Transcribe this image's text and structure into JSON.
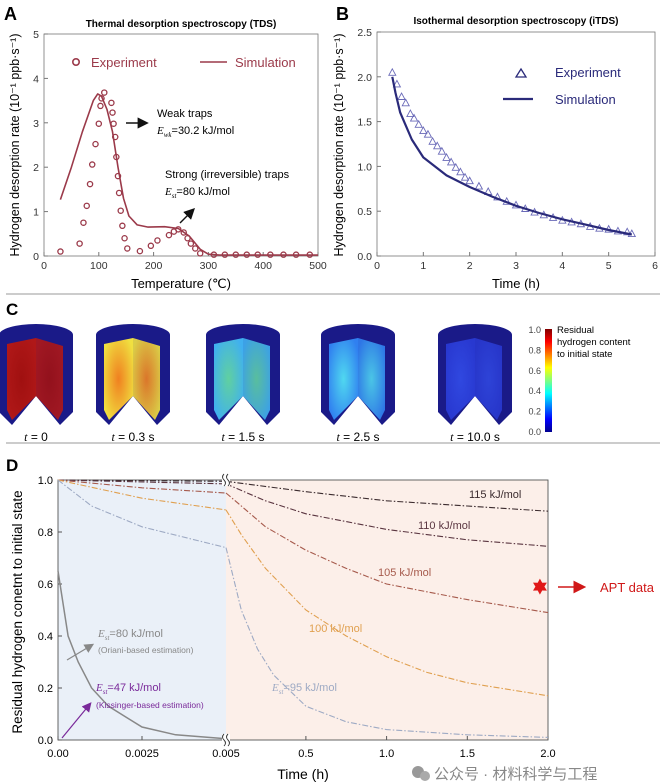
{
  "panels": {
    "a": "A",
    "b": "B",
    "c": "C",
    "d": "D"
  },
  "chart_data": [
    {
      "id": "A",
      "type": "scatter+line",
      "title": "Thermal desorption spectroscopy (TDS)",
      "xlabel": "Temperature (℃)",
      "ylabel": "Hydrogen desorption rate (10⁻¹ ppb·s⁻¹)",
      "xlim": [
        0,
        500
      ],
      "ylim": [
        0,
        5
      ],
      "xticks": [
        "0",
        "100",
        "200",
        "300",
        "400",
        "500"
      ],
      "yticks": [
        "0",
        "1",
        "2",
        "3",
        "4",
        "5"
      ],
      "legend": {
        "placement": "top",
        "entries": [
          "Experiment",
          "Simulation"
        ]
      },
      "color": "#9b3a4a",
      "series": [
        {
          "name": "Experiment",
          "marker": "circle",
          "points": [
            [
              30,
              0.1
            ],
            [
              65,
              0.28
            ],
            [
              72,
              0.75
            ],
            [
              78,
              1.13
            ],
            [
              84,
              1.62
            ],
            [
              88,
              2.06
            ],
            [
              94,
              2.52
            ],
            [
              100,
              2.98
            ],
            [
              103,
              3.38
            ],
            [
              105,
              3.55
            ],
            [
              110,
              3.68
            ],
            [
              123,
              3.45
            ],
            [
              125,
              3.23
            ],
            [
              127,
              2.98
            ],
            [
              130,
              2.68
            ],
            [
              132,
              2.23
            ],
            [
              135,
              1.8
            ],
            [
              137,
              1.42
            ],
            [
              140,
              1.02
            ],
            [
              143,
              0.68
            ],
            [
              147,
              0.4
            ],
            [
              152,
              0.17
            ],
            [
              175,
              0.11
            ],
            [
              195,
              0.23
            ],
            [
              207,
              0.35
            ],
            [
              228,
              0.47
            ],
            [
              237,
              0.55
            ],
            [
              245,
              0.6
            ],
            [
              255,
              0.53
            ],
            [
              262,
              0.4
            ],
            [
              268,
              0.28
            ],
            [
              276,
              0.17
            ],
            [
              285,
              0.06
            ],
            [
              310,
              0.03
            ],
            [
              330,
              0.03
            ],
            [
              350,
              0.03
            ],
            [
              370,
              0.03
            ],
            [
              390,
              0.03
            ],
            [
              413,
              0.03
            ],
            [
              437,
              0.03
            ],
            [
              460,
              0.03
            ],
            [
              485,
              0.03
            ]
          ]
        },
        {
          "name": "Simulation",
          "marker": "line",
          "points": [
            [
              30,
              1.27
            ],
            [
              50,
              2.0
            ],
            [
              70,
              2.8
            ],
            [
              90,
              3.5
            ],
            [
              98,
              3.65
            ],
            [
              105,
              3.6
            ],
            [
              115,
              3.3
            ],
            [
              125,
              2.8
            ],
            [
              135,
              2.0
            ],
            [
              145,
              1.3
            ],
            [
              155,
              0.9
            ],
            [
              170,
              0.7
            ],
            [
              190,
              0.65
            ],
            [
              220,
              0.66
            ],
            [
              245,
              0.62
            ],
            [
              265,
              0.45
            ],
            [
              285,
              0.15
            ],
            [
              300,
              0.04
            ],
            [
              320,
              0.02
            ],
            [
              500,
              0.02
            ]
          ]
        }
      ],
      "annotations": [
        {
          "text": "Weak traps",
          "energy_symbol": "E",
          "energy_sub": "wk",
          "energy_value": "=30.2 kJ/mol"
        },
        {
          "text": "Strong (irreversible) traps",
          "energy_symbol": "E",
          "energy_sub": "st",
          "energy_value": "=80 kJ/mol"
        }
      ]
    },
    {
      "id": "B",
      "type": "scatter+line",
      "title": "Isothermal desorption spectroscopy (iTDS)",
      "xlabel": "Time (h)",
      "ylabel": "Hydrogen desorption rate (10⁻¹ ppb·s⁻¹)",
      "xlim": [
        0,
        6
      ],
      "ylim": [
        0,
        2.5
      ],
      "xticks": [
        "0",
        "1",
        "2",
        "3",
        "4",
        "5",
        "6"
      ],
      "yticks": [
        "0.0",
        "0.5",
        "1.0",
        "1.5",
        "2.0",
        "2.5"
      ],
      "legend": {
        "placement": "top-right",
        "entries": [
          "Experiment",
          "Simulation"
        ]
      },
      "color": "#2a2a7a",
      "marker_color": "#6a6ab8",
      "series": [
        {
          "name": "Experiment",
          "marker": "triangle",
          "points": [
            [
              0.33,
              2.05
            ],
            [
              0.43,
              1.92
            ],
            [
              0.53,
              1.78
            ],
            [
              0.62,
              1.71
            ],
            [
              0.72,
              1.59
            ],
            [
              0.8,
              1.54
            ],
            [
              0.9,
              1.47
            ],
            [
              1.0,
              1.4
            ],
            [
              1.1,
              1.36
            ],
            [
              1.2,
              1.28
            ],
            [
              1.3,
              1.23
            ],
            [
              1.4,
              1.17
            ],
            [
              1.5,
              1.1
            ],
            [
              1.6,
              1.05
            ],
            [
              1.7,
              0.99
            ],
            [
              1.8,
              0.94
            ],
            [
              1.9,
              0.88
            ],
            [
              2.0,
              0.84
            ],
            [
              2.2,
              0.78
            ],
            [
              2.4,
              0.72
            ],
            [
              2.6,
              0.66
            ],
            [
              2.8,
              0.61
            ],
            [
              3.0,
              0.57
            ],
            [
              3.2,
              0.53
            ],
            [
              3.4,
              0.49
            ],
            [
              3.6,
              0.46
            ],
            [
              3.8,
              0.43
            ],
            [
              4.0,
              0.4
            ],
            [
              4.2,
              0.38
            ],
            [
              4.4,
              0.36
            ],
            [
              4.6,
              0.33
            ],
            [
              4.8,
              0.31
            ],
            [
              5.0,
              0.3
            ],
            [
              5.2,
              0.28
            ],
            [
              5.4,
              0.27
            ],
            [
              5.5,
              0.25
            ]
          ]
        },
        {
          "name": "Simulation",
          "marker": "line",
          "points": [
            [
              0.33,
              2.0
            ],
            [
              0.4,
              1.82
            ],
            [
              0.5,
              1.6
            ],
            [
              0.75,
              1.3
            ],
            [
              1,
              1.1
            ],
            [
              1.5,
              0.9
            ],
            [
              2,
              0.77
            ],
            [
              2.5,
              0.66
            ],
            [
              3,
              0.56
            ],
            [
              3.5,
              0.48
            ],
            [
              4,
              0.41
            ],
            [
              4.5,
              0.35
            ],
            [
              5,
              0.29
            ],
            [
              5.5,
              0.24
            ]
          ]
        }
      ]
    },
    {
      "id": "D",
      "type": "line",
      "xlabel": "Time (h)",
      "ylabel": "Residual hydrogen conetnt to initial state",
      "ylim": [
        0,
        1.0
      ],
      "x_axis_break": "0.005",
      "xticks_left": [
        "0.00",
        "0.0025",
        "0.005"
      ],
      "xticks_right": [
        "0.5",
        "1.0",
        "1.5",
        "2.0"
      ],
      "yticks": [
        "0.0",
        "0.2",
        "0.4",
        "0.6",
        "0.8",
        "1.0"
      ],
      "background_colors": {
        "left": "#eaf0f8",
        "right": "#fcefe9"
      },
      "series": [
        {
          "label": "115 kJ/mol",
          "color": "#3b2b2e",
          "style": "dash-dot",
          "left": [
            [
              0,
              1.0
            ],
            [
              0.005,
              0.995
            ]
          ],
          "right": [
            [
              0.005,
              0.995
            ],
            [
              0.5,
              0.955
            ],
            [
              1.0,
              0.92
            ],
            [
              1.5,
              0.9
            ],
            [
              2.0,
              0.88
            ]
          ]
        },
        {
          "label": "110 kJ/mol",
          "color": "#5a3540",
          "style": "dash-dot",
          "left": [
            [
              0,
              1.0
            ],
            [
              0.005,
              0.985
            ]
          ],
          "right": [
            [
              0.005,
              0.985
            ],
            [
              0.25,
              0.92
            ],
            [
              0.5,
              0.87
            ],
            [
              1.0,
              0.81
            ],
            [
              1.5,
              0.77
            ],
            [
              2.0,
              0.745
            ]
          ]
        },
        {
          "label": "105 kJ/mol",
          "color": "#a65a4c",
          "style": "dash-dot",
          "left": [
            [
              0,
              1.0
            ],
            [
              0.0025,
              0.97
            ],
            [
              0.005,
              0.95
            ]
          ],
          "right": [
            [
              0.005,
              0.95
            ],
            [
              0.1,
              0.9
            ],
            [
              0.25,
              0.82
            ],
            [
              0.5,
              0.73
            ],
            [
              0.75,
              0.66
            ],
            [
              1.0,
              0.6
            ],
            [
              1.5,
              0.54
            ],
            [
              2.0,
              0.49
            ]
          ]
        },
        {
          "label": "100 kJ/mol",
          "color": "#e0a050",
          "style": "dash-dot",
          "left": [
            [
              0,
              1.0
            ],
            [
              0.0025,
              0.93
            ],
            [
              0.005,
              0.885
            ]
          ],
          "right": [
            [
              0.005,
              0.885
            ],
            [
              0.1,
              0.79
            ],
            [
              0.25,
              0.66
            ],
            [
              0.5,
              0.5
            ],
            [
              0.75,
              0.4
            ],
            [
              1.0,
              0.32
            ],
            [
              1.25,
              0.26
            ],
            [
              1.5,
              0.22
            ],
            [
              2.0,
              0.17
            ]
          ]
        },
        {
          "label_symbol": "E",
          "label_sub": "st",
          "label_value": "=95 kJ/mol",
          "color": "#9eaac4",
          "style": "dash-dot",
          "left": [
            [
              0,
              1.0
            ],
            [
              0.001,
              0.9
            ],
            [
              0.0025,
              0.82
            ],
            [
              0.005,
              0.74
            ]
          ],
          "right": [
            [
              0.005,
              0.74
            ],
            [
              0.1,
              0.5
            ],
            [
              0.2,
              0.35
            ],
            [
              0.3,
              0.25
            ],
            [
              0.5,
              0.13
            ],
            [
              0.75,
              0.07
            ],
            [
              1.0,
              0.04
            ],
            [
              1.5,
              0.02
            ],
            [
              2.0,
              0.01
            ]
          ]
        },
        {
          "label_symbol": "E",
          "label_sub": "st",
          "label_value": "=80 kJ/mol",
          "note": "(Oriani-based estimation)",
          "color": "#888888",
          "style": "solid",
          "left": [
            [
              0,
              0.65
            ],
            [
              0.0003,
              0.4
            ],
            [
              0.0006,
              0.3
            ],
            [
              0.001,
              0.2
            ],
            [
              0.0015,
              0.13
            ],
            [
              0.0025,
              0.05
            ],
            [
              0.0035,
              0.02
            ],
            [
              0.005,
              0.005
            ]
          ],
          "right": []
        }
      ],
      "kissinger": {
        "label_symbol": "E",
        "label_sub": "st",
        "label_value": "=47 kJ/mol",
        "note": "(Kissinger-based estimation)",
        "color": "#7a2a9a"
      },
      "apt": {
        "label": "APT data",
        "x": 1.95,
        "y": 0.59,
        "color": "#e01818"
      }
    }
  ],
  "panel_c": {
    "snapshots": [
      {
        "label_t": "t",
        "label_value": " = 0",
        "core": "#a01010",
        "glow": "#b01818"
      },
      {
        "label_t": "t",
        "label_value": " = 0.3 s",
        "core": "#f08020",
        "glow": "#f0e040"
      },
      {
        "label_t": "t",
        "label_value": " = 1.5 s",
        "core": "#60d0a0",
        "glow": "#40b0f0"
      },
      {
        "label_t": "t",
        "label_value": " = 2.5 s",
        "core": "#50d8f0",
        "glow": "#3080f0"
      },
      {
        "label_t": "t",
        "label_value": " = 10.0 s",
        "core": "#3048e0",
        "glow": "#2838d0"
      }
    ],
    "shell_color": "#1a1a88",
    "colorbar": {
      "ticks": [
        "1.0",
        "0.8",
        "0.6",
        "0.4",
        "0.2",
        "0.0"
      ],
      "title_lines": [
        "Residual",
        "hydrogen content",
        "to initial state"
      ]
    }
  },
  "watermark": "公众号 · 材料科学与工程"
}
